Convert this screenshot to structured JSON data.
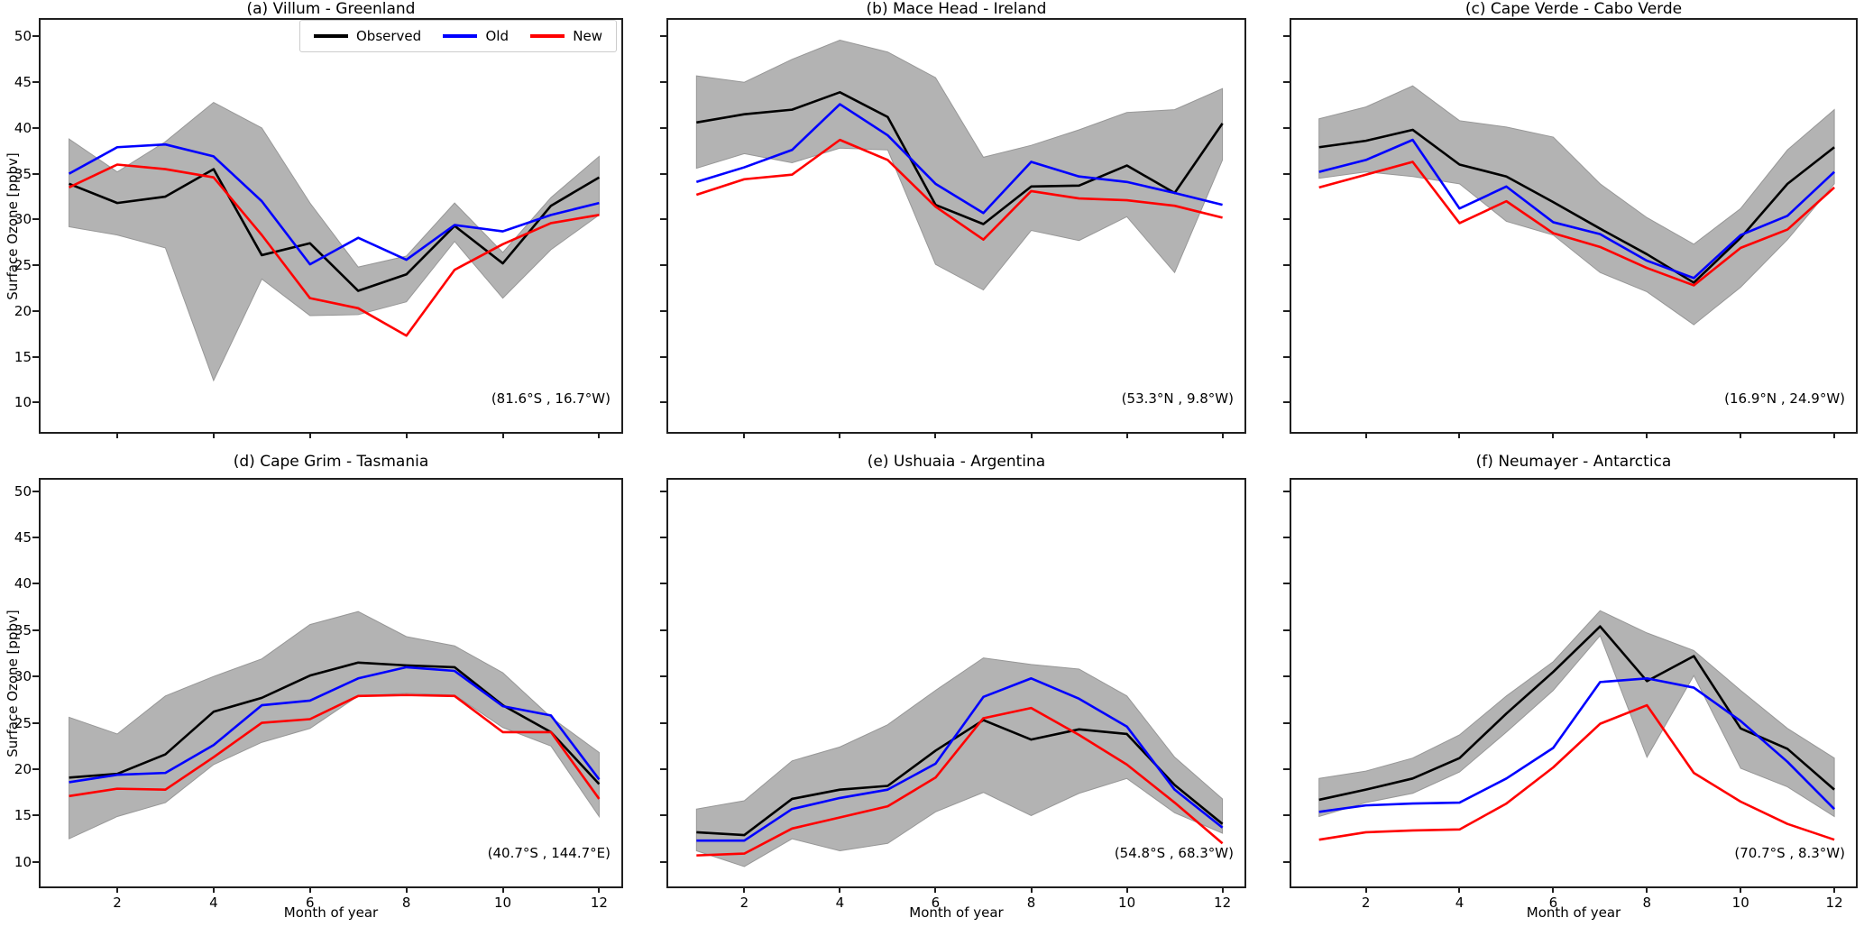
{
  "axis": {
    "ylabel": "Surface Ozone [ppbv]",
    "xlabel": "Month of year",
    "yticks": [
      "50",
      "45",
      "40",
      "35",
      "30",
      "25",
      "20",
      "15",
      "10"
    ],
    "ytick_values": [
      50,
      45,
      40,
      35,
      30,
      25,
      20,
      15,
      10
    ],
    "xticks": [
      "2",
      "4",
      "6",
      "8",
      "10",
      "12"
    ],
    "xtick_values": [
      2,
      4,
      6,
      8,
      10,
      12
    ]
  },
  "legend": {
    "entries": [
      {
        "label": "Observed",
        "color": "#000000"
      },
      {
        "label": "Old",
        "color": "#0000ff"
      },
      {
        "label": "New",
        "color": "#ff0000"
      }
    ]
  },
  "chart_data": {
    "type": "line",
    "x_unit": "month of year",
    "y_unit": "ppbv",
    "xlim": [
      0.41,
      12.46
    ],
    "ylim_top": [
      6.78,
      51.82
    ],
    "ylim_bottom": [
      7.36,
      51.22
    ],
    "grid": false,
    "band_color": "#b3b3b3",
    "band_edge_color": "#979797",
    "panels": [
      {
        "id": "a",
        "title": "(a) Villum - Greenland",
        "coords": "(81.6°S , 16.7°W)",
        "months": [
          1,
          2,
          3,
          4,
          5,
          6,
          7,
          8,
          9,
          10,
          11,
          12
        ],
        "series": [
          {
            "name": "Observed",
            "color": "#000000",
            "values": [
              33.9,
              31.8,
              32.5,
              35.5,
              26.1,
              27.4,
              22.2,
              24.0,
              29.3,
              25.2,
              31.5,
              34.6
            ]
          },
          {
            "name": "Old",
            "color": "#0000ff",
            "values": [
              35.0,
              37.9,
              38.2,
              36.9,
              32.0,
              25.1,
              28.0,
              25.6,
              29.4,
              28.7,
              30.5,
              31.8
            ]
          },
          {
            "name": "New",
            "color": "#ff0000",
            "values": [
              33.5,
              36.0,
              35.5,
              34.6,
              28.3,
              21.4,
              20.3,
              17.3,
              24.5,
              27.3,
              29.6,
              30.5
            ]
          }
        ],
        "band": {
          "name": "observed-std-band",
          "upper": [
            38.8,
            35.2,
            38.5,
            42.8,
            40.0,
            31.8,
            24.8,
            26.0,
            31.8,
            26.4,
            32.4,
            36.9
          ],
          "lower": [
            29.2,
            28.3,
            26.9,
            12.4,
            23.5,
            19.5,
            19.6,
            21.0,
            27.6,
            21.4,
            26.7,
            30.5
          ]
        }
      },
      {
        "id": "b",
        "title": "(b) Mace Head - Ireland",
        "coords": "(53.3°N , 9.8°W)",
        "months": [
          1,
          2,
          3,
          4,
          5,
          6,
          7,
          8,
          9,
          10,
          11,
          12
        ],
        "series": [
          {
            "name": "Observed",
            "color": "#000000",
            "values": [
              40.6,
              41.5,
              42.0,
              43.9,
              41.2,
              31.6,
              29.5,
              33.6,
              33.7,
              35.9,
              32.9,
              40.5
            ]
          },
          {
            "name": "Old",
            "color": "#0000ff",
            "values": [
              34.1,
              35.7,
              37.6,
              42.6,
              39.2,
              33.9,
              30.7,
              36.3,
              34.7,
              34.1,
              32.9,
              31.6
            ]
          },
          {
            "name": "New",
            "color": "#ff0000",
            "values": [
              32.7,
              34.4,
              34.9,
              38.7,
              36.5,
              31.4,
              27.8,
              33.1,
              32.3,
              32.1,
              31.5,
              30.2
            ]
          }
        ],
        "band": {
          "name": "observed-std-band",
          "upper": [
            45.7,
            45.0,
            47.5,
            49.6,
            48.3,
            45.5,
            36.8,
            38.1,
            39.8,
            41.7,
            42.0,
            44.3
          ],
          "lower": [
            35.6,
            37.2,
            36.2,
            37.8,
            37.6,
            25.1,
            22.3,
            28.8,
            27.7,
            30.3,
            24.2,
            36.5
          ]
        }
      },
      {
        "id": "c",
        "title": "(c) Cape Verde - Cabo Verde",
        "coords": "(16.9°N , 24.9°W)",
        "months": [
          1,
          2,
          3,
          4,
          5,
          6,
          7,
          8,
          9,
          10,
          11,
          12
        ],
        "series": [
          {
            "name": "Observed",
            "color": "#000000",
            "values": [
              37.9,
              38.6,
              39.8,
              36.0,
              34.7,
              31.9,
              29.0,
              26.2,
              23.1,
              28.0,
              33.9,
              37.9
            ]
          },
          {
            "name": "Old",
            "color": "#0000ff",
            "values": [
              35.2,
              36.5,
              38.7,
              31.2,
              33.6,
              29.7,
              28.4,
              25.5,
              23.6,
              28.3,
              30.4,
              35.2
            ]
          },
          {
            "name": "New",
            "color": "#ff0000",
            "values": [
              33.5,
              34.9,
              36.3,
              29.6,
              32.0,
              28.5,
              27.0,
              24.7,
              22.8,
              26.9,
              28.9,
              33.5
            ]
          }
        ],
        "band": {
          "name": "observed-std-band",
          "upper": [
            41.0,
            42.3,
            44.6,
            40.8,
            40.1,
            39.0,
            33.9,
            30.2,
            27.3,
            31.2,
            37.6,
            42.0
          ],
          "lower": [
            34.5,
            35.2,
            34.7,
            33.9,
            29.8,
            28.3,
            24.2,
            22.1,
            18.5,
            22.6,
            27.8,
            33.9
          ]
        }
      },
      {
        "id": "d",
        "title": "(d) Cape Grim - Tasmania",
        "coords": "(40.7°S , 144.7°E)",
        "months": [
          1,
          2,
          3,
          4,
          5,
          6,
          7,
          8,
          9,
          10,
          11,
          12
        ],
        "series": [
          {
            "name": "Observed",
            "color": "#000000",
            "values": [
              19.1,
              19.5,
              21.6,
              26.2,
              27.7,
              30.1,
              31.5,
              31.2,
              31.0,
              26.9,
              24.0,
              18.4
            ]
          },
          {
            "name": "Old",
            "color": "#0000ff",
            "values": [
              18.6,
              19.4,
              19.6,
              22.6,
              26.9,
              27.4,
              29.8,
              31.0,
              30.6,
              26.8,
              25.8,
              18.9
            ]
          },
          {
            "name": "New",
            "color": "#ff0000",
            "values": [
              17.1,
              17.9,
              17.8,
              21.3,
              25.0,
              25.4,
              27.9,
              28.0,
              27.9,
              24.0,
              24.0,
              16.8
            ]
          }
        ],
        "band": {
          "name": "observed-std-band",
          "upper": [
            25.6,
            23.8,
            27.9,
            30.0,
            31.9,
            35.6,
            37.0,
            34.3,
            33.3,
            30.4,
            25.6,
            21.8
          ],
          "lower": [
            12.5,
            14.9,
            16.4,
            20.5,
            22.9,
            24.4,
            27.9,
            28.2,
            28.0,
            24.5,
            22.5,
            14.9
          ]
        }
      },
      {
        "id": "e",
        "title": "(e) Ushuaia - Argentina",
        "coords": "(54.8°S , 68.3°W)",
        "months": [
          1,
          2,
          3,
          4,
          5,
          6,
          7,
          8,
          9,
          10,
          11,
          12
        ],
        "series": [
          {
            "name": "Observed",
            "color": "#000000",
            "values": [
              13.2,
              12.9,
              16.8,
              17.8,
              18.2,
              22.0,
              25.3,
              23.2,
              24.3,
              23.8,
              18.3,
              14.1
            ]
          },
          {
            "name": "Old",
            "color": "#0000ff",
            "values": [
              12.3,
              12.3,
              15.7,
              16.9,
              17.8,
              20.6,
              27.8,
              29.8,
              27.6,
              24.6,
              17.8,
              13.7
            ]
          },
          {
            "name": "New",
            "color": "#ff0000",
            "values": [
              10.7,
              10.9,
              13.6,
              14.8,
              16.0,
              19.1,
              25.5,
              26.6,
              23.7,
              20.5,
              16.4,
              12.0
            ]
          }
        ],
        "band": {
          "name": "observed-std-band",
          "upper": [
            15.7,
            16.6,
            20.9,
            22.4,
            24.8,
            28.5,
            32.0,
            31.3,
            30.8,
            27.9,
            21.3,
            16.8
          ],
          "lower": [
            11.2,
            9.5,
            12.5,
            11.2,
            12.0,
            15.4,
            17.5,
            15.0,
            17.4,
            19.0,
            15.3,
            13.1
          ]
        }
      },
      {
        "id": "f",
        "title": "(f) Neumayer - Antarctica",
        "coords": "(70.7°S , 8.3°W)",
        "months": [
          1,
          2,
          3,
          4,
          5,
          6,
          7,
          8,
          9,
          10,
          11,
          12
        ],
        "series": [
          {
            "name": "Observed",
            "color": "#000000",
            "values": [
              16.7,
              17.8,
              19.0,
              21.2,
              26.0,
              30.5,
              35.4,
              29.5,
              32.2,
              24.4,
              22.2,
              17.8
            ]
          },
          {
            "name": "Old",
            "color": "#0000ff",
            "values": [
              15.4,
              16.1,
              16.3,
              16.4,
              19.0,
              22.3,
              29.4,
              29.8,
              28.8,
              25.2,
              20.8,
              15.7
            ]
          },
          {
            "name": "New",
            "color": "#ff0000",
            "values": [
              12.4,
              13.2,
              13.4,
              13.5,
              16.3,
              20.2,
              24.9,
              26.9,
              19.6,
              16.5,
              14.1,
              12.4
            ]
          }
        ],
        "band": {
          "name": "observed-std-band",
          "upper": [
            19.0,
            19.8,
            21.2,
            23.7,
            27.9,
            31.6,
            37.1,
            34.7,
            32.8,
            28.5,
            24.4,
            21.2
          ],
          "lower": [
            14.9,
            16.4,
            17.4,
            19.7,
            24.0,
            28.5,
            34.4,
            21.3,
            30.1,
            20.1,
            18.1,
            14.9
          ]
        }
      }
    ]
  }
}
